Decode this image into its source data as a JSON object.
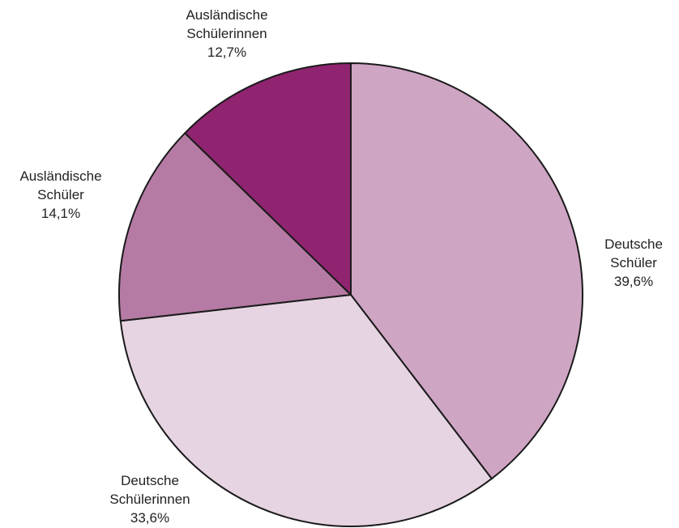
{
  "chart_data": {
    "type": "pie",
    "title": "",
    "start": "12 o'clock",
    "direction": "clockwise",
    "slices": [
      {
        "line1": "Deutsche",
        "line2": "Schüler",
        "value_label": "39,6%",
        "value": 39.6,
        "color": "#cfa5c4"
      },
      {
        "line1": "Deutsche",
        "line2": "Schülerinnen",
        "value_label": "33,6%",
        "value": 33.6,
        "color": "#e6d4e2"
      },
      {
        "line1": "Ausländische",
        "line2": "Schüler",
        "value_label": "14,1%",
        "value": 14.1,
        "color": "#b57ba4"
      },
      {
        "line1": "Ausländische",
        "line2": "Schülerinnen",
        "value_label": "12,7%",
        "value": 12.7,
        "color": "#902470"
      }
    ]
  }
}
